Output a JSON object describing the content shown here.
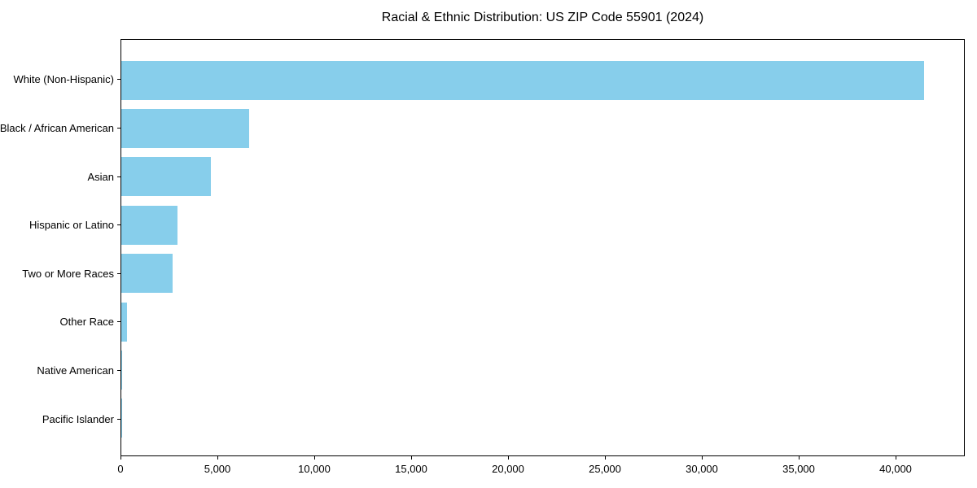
{
  "chart_data": {
    "type": "bar",
    "orientation": "horizontal",
    "title": "Racial & Ethnic Distribution: US ZIP Code 55901 (2024)",
    "categories": [
      "White (Non-Hispanic)",
      "Black / African American",
      "Asian",
      "Hispanic or Latino",
      "Two or More Races",
      "Other Race",
      "Native American",
      "Pacific Islander"
    ],
    "values": [
      41500,
      6600,
      4650,
      2900,
      2650,
      300,
      30,
      10
    ],
    "xlabel": "",
    "ylabel": "",
    "xlim": [
      0,
      43570
    ],
    "xticks": [
      0,
      5000,
      10000,
      15000,
      20000,
      25000,
      30000,
      35000,
      40000
    ],
    "xtick_labels": [
      "0",
      "5,000",
      "10,000",
      "15,000",
      "20,000",
      "25,000",
      "30,000",
      "35,000",
      "40,000"
    ],
    "bar_color": "#87CEEB",
    "axis_color": "#000000",
    "background_color": "#ffffff",
    "grid": false,
    "legend": false
  }
}
